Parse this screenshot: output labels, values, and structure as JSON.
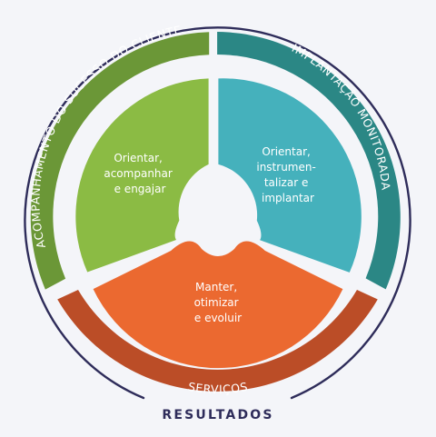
{
  "colors": {
    "background": "#f4f5f9",
    "green_outer": "#6b9737",
    "green_inner": "#8bbb44",
    "teal_outer": "#2b8785",
    "teal_inner": "#45b1bc",
    "orange_outer": "#bb4d27",
    "orange_inner": "#eb6930",
    "outline": "#2e2c5a",
    "text_on_color": "#ffffff"
  },
  "outer_ring": {
    "left_label": "ACOMPANHAMENTO DO SUCESSO DO CLIENTE",
    "right_label": "IMPLANTAÇÃO MONITORADA",
    "bottom_label": "SERVIÇOS"
  },
  "inner": {
    "green_lines": [
      "Orientar,",
      "acompanhar",
      "e engajar"
    ],
    "teal_lines": [
      "Orientar,",
      "instrumen-",
      "talizar e",
      "implantar"
    ],
    "orange_lines": [
      "Manter,",
      "otimizar",
      "e evoluir"
    ]
  },
  "results_label": "RESULTADOS"
}
